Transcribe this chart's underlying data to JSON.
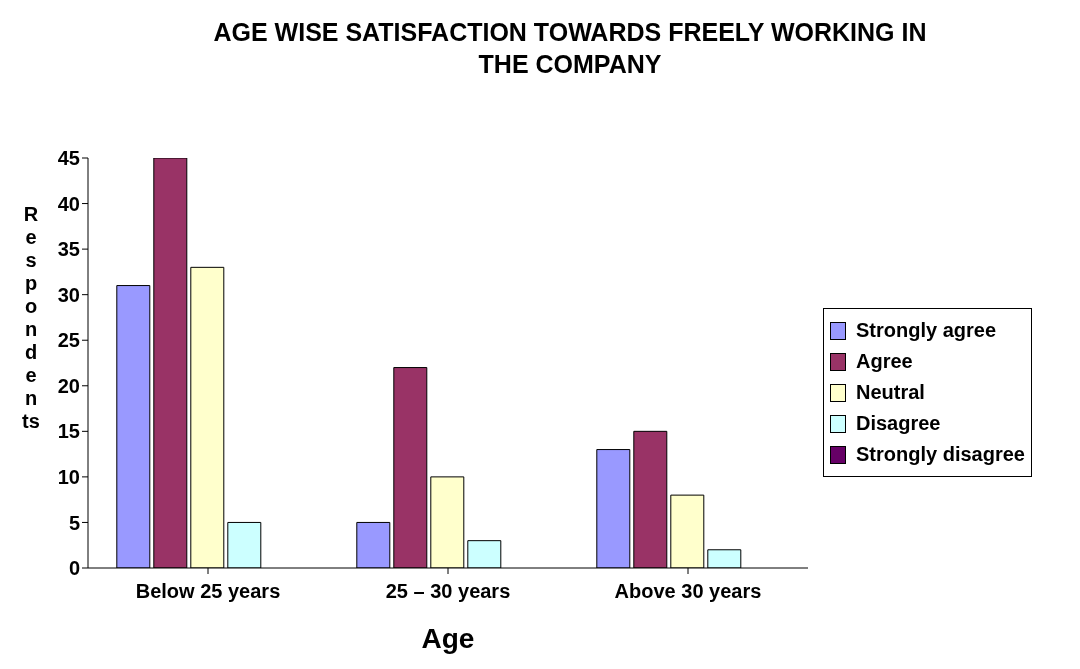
{
  "chart_data": {
    "type": "bar",
    "title": "AGE WISE SATISFACTION TOWARDS FREELY WORKING IN THE COMPANY",
    "xlabel": "Age",
    "ylabel": "Respondents",
    "categories": [
      "Below 25 years",
      "25 – 30 years",
      "Above 30 years"
    ],
    "series": [
      {
        "name": "Strongly agree",
        "color": "#9999ff",
        "values": [
          31,
          5,
          13
        ]
      },
      {
        "name": "Agree",
        "color": "#993366",
        "values": [
          45,
          22,
          15
        ]
      },
      {
        "name": "Neutral",
        "color": "#ffffcc",
        "values": [
          33,
          10,
          8
        ]
      },
      {
        "name": "Disagree",
        "color": "#ccffff",
        "values": [
          5,
          3,
          2
        ]
      },
      {
        "name": "Strongly disagree",
        "color": "#660066",
        "values": [
          0,
          0,
          0
        ]
      }
    ],
    "ylim": [
      0,
      45
    ],
    "yticks": [
      0,
      5,
      10,
      15,
      20,
      25,
      30,
      35,
      40,
      45
    ],
    "legend": "right"
  }
}
